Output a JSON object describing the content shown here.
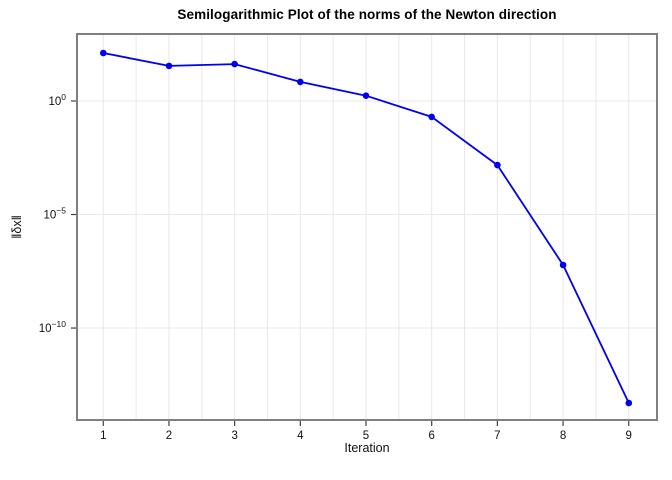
{
  "figure": {
    "background": "#ffffff"
  },
  "chart_data": {
    "type": "line",
    "title": "Semilogarithmic Plot of the norms of the Newton direction",
    "xlabel": "Iteration",
    "ylabel": "‖δx‖",
    "yscale": "log",
    "x": [
      1,
      2,
      3,
      4,
      5,
      6,
      7,
      8,
      9
    ],
    "y": [
      130,
      35,
      42,
      6.9,
      1.7,
      0.2,
      0.0015,
      6e-08,
      5e-14
    ],
    "xticks": [
      1,
      2,
      3,
      4,
      5,
      6,
      7,
      8,
      9
    ],
    "ytick_exponents": [
      0,
      -5,
      -10
    ],
    "xlim": [
      0.6,
      9.43
    ],
    "ylog_range": [
      -14.05,
      2.95
    ],
    "x_grid_step": 0.5,
    "grid": true,
    "legend": "none",
    "marker": "circle",
    "colors": {
      "line": "#0000ee",
      "marker": "#0000ee",
      "grid": "#e8e8e8",
      "border": "#7f7f7f",
      "tick": "#404040",
      "text": "#111111"
    }
  }
}
